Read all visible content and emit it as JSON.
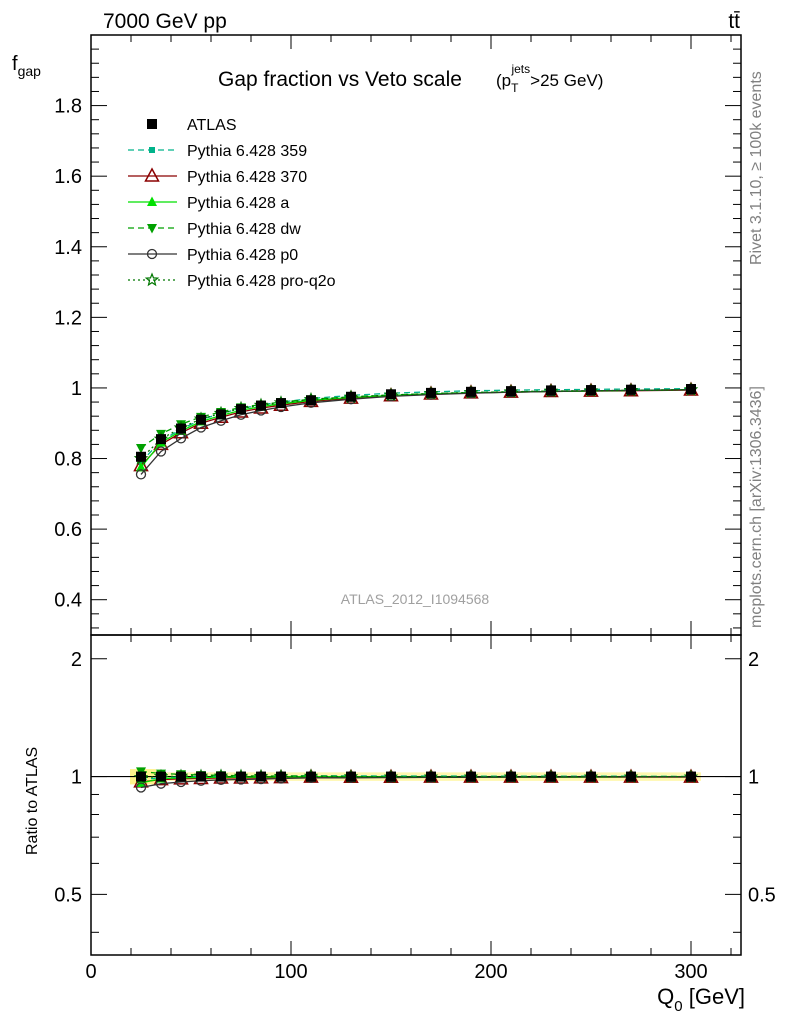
{
  "header": {
    "left": "7000 GeV pp",
    "right": "tt̄",
    "side_top": "Rivet 3.1.10, ≥ 100k events",
    "side_bottom": "mcplots.cern.ch [arXiv:1306.3436]"
  },
  "colors": {
    "ATLAS": "#000000",
    "Pythia 6.428 359": "#00b38a",
    "Pythia 6.428 370": "#8b0000",
    "Pythia 6.428 a": "#00e000",
    "Pythia 6.428 dw": "#00a000",
    "Pythia 6.428 p0": "#333333",
    "Pythia 6.428 pro-q2o": "#007700",
    "band": "#fff48c"
  },
  "chart_data": {
    "type": "line",
    "title": "Gap fraction vs Veto scale",
    "title_cut": {
      "pre": "(p",
      "sup": "jets",
      "sub": "T",
      "post": ">25 GeV)"
    },
    "watermark": "ATLAS_2012_I1094568",
    "xlabel": {
      "main": "Q",
      "sub": "0",
      "unit": " [GeV]"
    },
    "ylabel": {
      "main": "f",
      "sub": "gap"
    },
    "ratio_ylabel": "Ratio to ATLAS",
    "xlim": [
      0,
      325
    ],
    "ylim": [
      0.3,
      2.0
    ],
    "ratio_ylim": [
      0.35,
      2.3
    ],
    "xticks": [
      "0",
      "100",
      "200",
      "300"
    ],
    "yticks": [
      "0.4",
      "0.6",
      "0.8",
      "1",
      "1.2",
      "1.4",
      "1.6",
      "1.8"
    ],
    "ratio_ticks": [
      "0.5",
      "1",
      "2"
    ],
    "x": [
      25,
      35,
      45,
      55,
      65,
      75,
      85,
      95,
      110,
      130,
      150,
      170,
      190,
      210,
      230,
      250,
      270,
      300
    ],
    "series": [
      {
        "name": "ATLAS",
        "marker": "square",
        "dash": "none",
        "values": [
          0.805,
          0.855,
          0.885,
          0.91,
          0.925,
          0.94,
          0.95,
          0.957,
          0.965,
          0.975,
          0.982,
          0.986,
          0.989,
          0.991,
          0.993,
          0.994,
          0.995,
          0.997
        ]
      },
      {
        "name": "Pythia 6.428 359",
        "marker": "square-small",
        "dash": "dashed",
        "values": [
          0.79,
          0.85,
          0.883,
          0.91,
          0.928,
          0.942,
          0.952,
          0.96,
          0.97,
          0.979,
          0.985,
          0.989,
          0.992,
          0.994,
          0.995,
          0.996,
          0.997,
          0.998
        ]
      },
      {
        "name": "Pythia 6.428 370",
        "marker": "triangle-open",
        "dash": "solid",
        "values": [
          0.78,
          0.84,
          0.873,
          0.9,
          0.917,
          0.932,
          0.943,
          0.951,
          0.962,
          0.971,
          0.978,
          0.983,
          0.986,
          0.988,
          0.99,
          0.991,
          0.992,
          0.994
        ]
      },
      {
        "name": "Pythia 6.428 a",
        "marker": "triangle",
        "dash": "solid",
        "values": [
          0.775,
          0.845,
          0.878,
          0.905,
          0.922,
          0.937,
          0.947,
          0.955,
          0.965,
          0.973,
          0.979,
          0.983,
          0.986,
          0.988,
          0.99,
          0.991,
          0.993,
          0.995
        ]
      },
      {
        "name": "Pythia 6.428 dw",
        "marker": "triangle-down",
        "dash": "dashed",
        "values": [
          0.83,
          0.87,
          0.897,
          0.918,
          0.932,
          0.945,
          0.953,
          0.96,
          0.968,
          0.975,
          0.98,
          0.984,
          0.987,
          0.989,
          0.991,
          0.992,
          0.993,
          0.995
        ]
      },
      {
        "name": "Pythia 6.428 p0",
        "marker": "circle-open",
        "dash": "solid",
        "values": [
          0.755,
          0.82,
          0.857,
          0.888,
          0.907,
          0.924,
          0.936,
          0.946,
          0.958,
          0.968,
          0.976,
          0.981,
          0.985,
          0.988,
          0.99,
          0.992,
          0.993,
          0.995
        ]
      },
      {
        "name": "Pythia 6.428 pro-q2o",
        "marker": "star",
        "dash": "dotted",
        "values": [
          0.8,
          0.855,
          0.887,
          0.912,
          0.928,
          0.942,
          0.951,
          0.958,
          0.967,
          0.974,
          0.98,
          0.984,
          0.987,
          0.989,
          0.991,
          0.992,
          0.993,
          0.995
        ]
      }
    ]
  }
}
